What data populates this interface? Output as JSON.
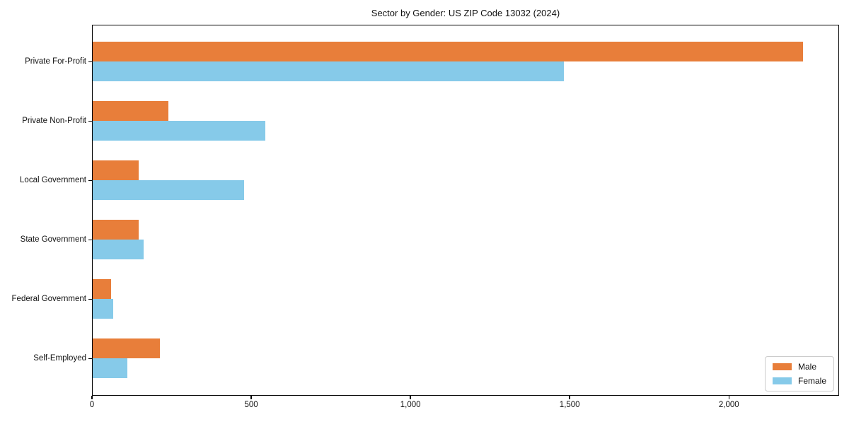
{
  "chart_data": {
    "type": "bar",
    "orientation": "horizontal",
    "title": "Sector by Gender: US ZIP Code 13032 (2024)",
    "categories": [
      "Private For-Profit",
      "Private Non-Profit",
      "Local Government",
      "State Government",
      "Federal Government",
      "Self-Employed"
    ],
    "series": [
      {
        "name": "Male",
        "color": "#e87e3a",
        "values": [
          2234,
          239,
          145,
          145,
          58,
          211
        ]
      },
      {
        "name": "Female",
        "color": "#86cae9",
        "values": [
          1482,
          544,
          476,
          160,
          64,
          109
        ]
      }
    ],
    "xlabel": "",
    "ylabel": "",
    "xlim": [
      0,
      2346
    ],
    "xticks": [
      0,
      500,
      1000,
      1500,
      2000
    ],
    "xtick_labels": [
      "0",
      "500",
      "1,000",
      "1,500",
      "2,000"
    ],
    "grid": false,
    "legend": {
      "position": "lower right",
      "entries": [
        "Male",
        "Female"
      ]
    }
  }
}
